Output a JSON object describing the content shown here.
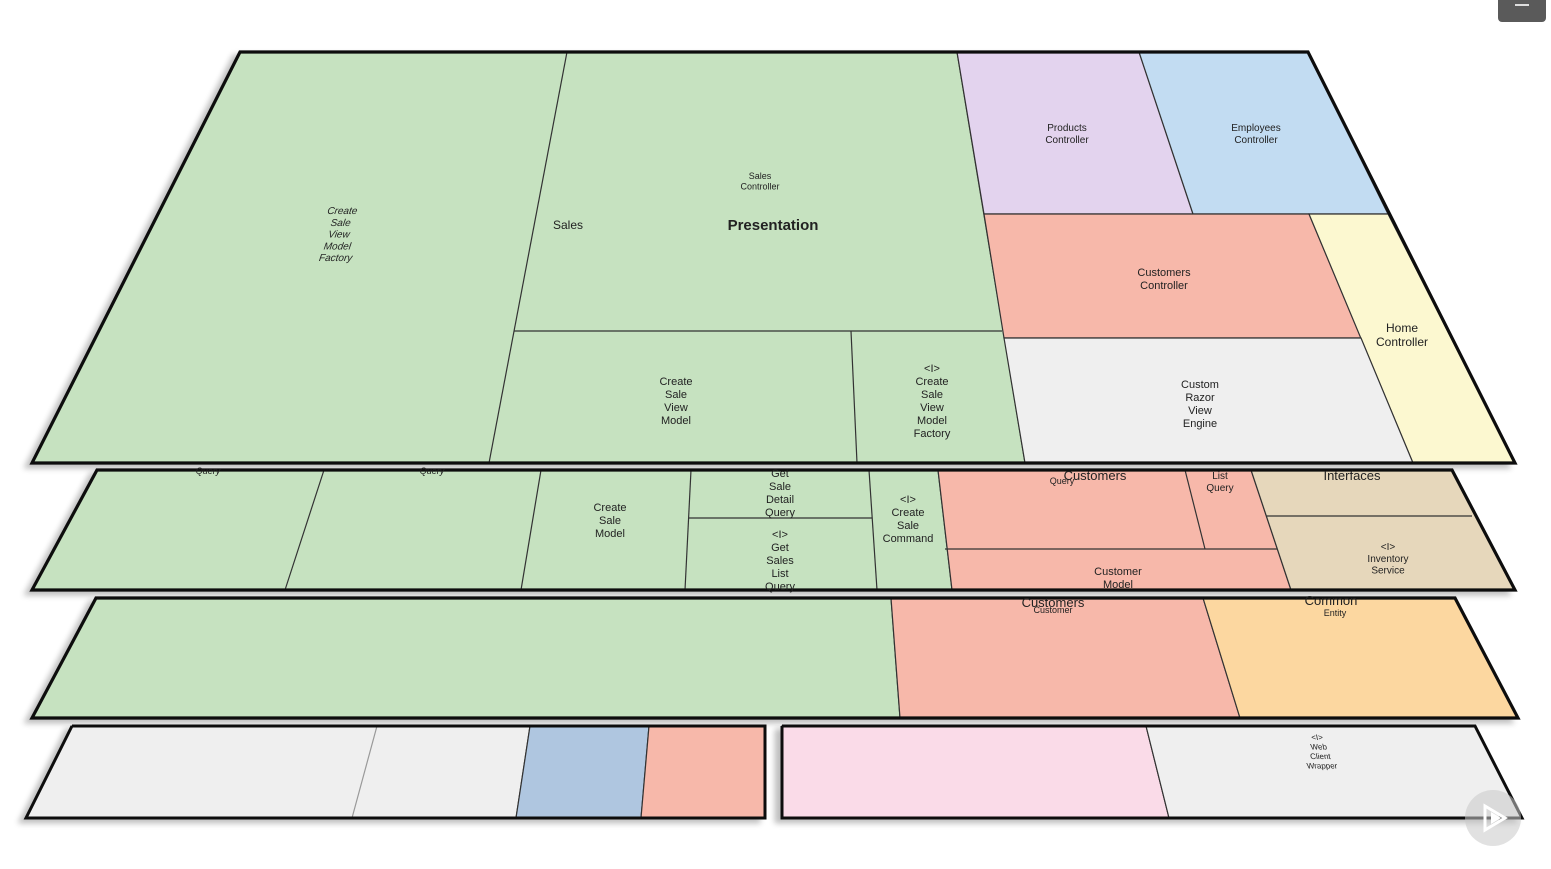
{
  "colors": {
    "green": "#c6e2c0",
    "purple": "#e3d3ee",
    "blue": "#c2dcf2",
    "salmon": "#f7b8aa",
    "yellow": "#fcf8d0",
    "light_gray": "#efefef",
    "tan": "#e6d7bb",
    "orange": "#fcd7a0",
    "pink": "#fadbe8",
    "steel_blue": "#afc6e0"
  },
  "controls": {
    "menu_icon": "hamburger-menu-icon",
    "play_icon": "play-logo-icon"
  },
  "layers": {
    "presentation": {
      "title": "Presentation",
      "sales_label": "Sales",
      "create_sale_view_model_factory_italic": "Create\nSale\nView\nModel\nFactory",
      "sales_controller": "Sales\nController",
      "create_sale_view_model": "Create\nSale\nView\nModel",
      "interface_create_sale_view_model_factory": "<I>\nCreate\nSale\nView\nModel\nFactory",
      "products_controller": "Products\nController",
      "employees_controller": "Employees\nController",
      "customers_controller": "Customers\nController",
      "home_controller": "Home\nController",
      "custom_razor_view_engine": "Custom\nRazor\nView\nEngine"
    },
    "application": {
      "query_1": "Query",
      "query_2": "Query",
      "create_sale_model": "Create\nSale\nModel",
      "get_sale_detail_query": "Get\nSale\nDetail\nQuery",
      "get_sales_list_query": "<I>\nGet\nSales\nList\nQuery",
      "create_sale_command": "<I>\nCreate\nSale\nCommand",
      "customers_title": "Customers",
      "customers_query": "Query",
      "list_query": "List\nQuery",
      "customer_model": "Customer\nModel",
      "interfaces_title": "Interfaces",
      "inventory_service": "<I>\nInventory\nService"
    },
    "domain": {
      "customers_title": "Customers",
      "customer_entity": "Customer",
      "common_title": "Common",
      "common_entity": "Entity"
    },
    "infrastructure": {
      "web_client_wrapper": "<I>\nWeb\nClient\nWrapper"
    }
  }
}
